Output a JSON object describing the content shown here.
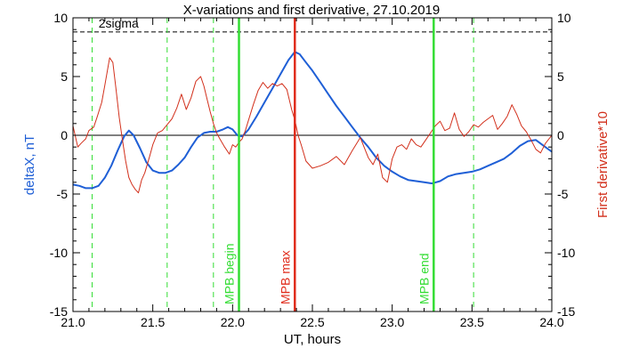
{
  "chart_data": {
    "type": "line",
    "title": "X-variations and first derivative, 27.10.2019",
    "xlabel": "UT, hours",
    "ylabel_left": "deltaX, nT",
    "ylabel_right": "First derivative*10",
    "xlim": [
      21.0,
      24.0
    ],
    "ylim": [
      -15,
      10
    ],
    "x_ticks": [
      "21.0",
      "21.5",
      "22.0",
      "22.5",
      "23.0",
      "23.5",
      "24.0"
    ],
    "y_ticks": [
      "10",
      "5",
      "0",
      "-5",
      "-10",
      "-15"
    ],
    "colors": {
      "deltaX": "#1f5fd6",
      "derivative": "#d2301c",
      "mpb": "#33dd33",
      "mpb_max": "#e02c1c",
      "axes": "#000000"
    },
    "sigma_label": "2sigma",
    "sigma_level": 8.8,
    "dashed_verticals": [
      21.12,
      21.59,
      21.88,
      23.51
    ],
    "mpb_lines": [
      {
        "x": 22.04,
        "label": "MPB begin",
        "color": "#33dd33"
      },
      {
        "x": 22.39,
        "label": "MPB max",
        "color": "#e02c1c"
      },
      {
        "x": 23.26,
        "label": "MPB end",
        "color": "#33dd33"
      }
    ],
    "series": [
      {
        "name": "deltaX",
        "color": "#1f5fd6",
        "x": [
          21.0,
          21.04,
          21.08,
          21.12,
          21.16,
          21.2,
          21.24,
          21.28,
          21.32,
          21.35,
          21.38,
          21.42,
          21.46,
          21.5,
          21.54,
          21.58,
          21.62,
          21.66,
          21.7,
          21.74,
          21.78,
          21.82,
          21.86,
          21.9,
          21.94,
          21.97,
          22.0,
          22.03,
          22.06,
          22.1,
          22.15,
          22.2,
          22.25,
          22.3,
          22.35,
          22.39,
          22.42,
          22.46,
          22.5,
          22.55,
          22.6,
          22.65,
          22.7,
          22.75,
          22.8,
          22.85,
          22.9,
          22.95,
          23.0,
          23.05,
          23.1,
          23.15,
          23.2,
          23.25,
          23.3,
          23.35,
          23.4,
          23.45,
          23.5,
          23.55,
          23.6,
          23.65,
          23.7,
          23.75,
          23.8,
          23.85,
          23.9,
          23.95,
          24.0
        ],
        "values": [
          -4.2,
          -4.3,
          -4.5,
          -4.5,
          -4.3,
          -3.6,
          -2.6,
          -1.3,
          -0.1,
          0.4,
          0.0,
          -1.1,
          -2.3,
          -3.0,
          -3.2,
          -3.2,
          -3.0,
          -2.5,
          -1.9,
          -1.0,
          -0.2,
          0.2,
          0.3,
          0.3,
          0.5,
          0.7,
          0.5,
          0.0,
          -0.1,
          0.5,
          1.6,
          2.8,
          4.0,
          5.2,
          6.4,
          7.1,
          6.9,
          6.2,
          5.5,
          4.5,
          3.5,
          2.5,
          1.6,
          0.7,
          -0.2,
          -1.0,
          -1.9,
          -2.6,
          -3.1,
          -3.5,
          -3.8,
          -3.9,
          -4.0,
          -4.1,
          -3.9,
          -3.5,
          -3.3,
          -3.2,
          -3.1,
          -2.9,
          -2.6,
          -2.3,
          -2.0,
          -1.5,
          -0.9,
          -0.5,
          -0.4,
          -0.9,
          -1.4
        ]
      },
      {
        "name": "First derivative*10",
        "color": "#d2301c",
        "x": [
          21.0,
          21.03,
          21.05,
          21.08,
          21.1,
          21.13,
          21.15,
          21.18,
          21.2,
          21.23,
          21.25,
          21.27,
          21.29,
          21.31,
          21.33,
          21.35,
          21.37,
          21.39,
          21.41,
          21.43,
          21.45,
          21.48,
          21.5,
          21.53,
          21.56,
          21.59,
          21.62,
          21.65,
          21.68,
          21.71,
          21.74,
          21.77,
          21.8,
          21.82,
          21.84,
          21.86,
          21.88,
          21.9,
          21.92,
          21.95,
          21.98,
          22.0,
          22.02,
          22.04,
          22.06,
          22.08,
          22.1,
          22.13,
          22.16,
          22.19,
          22.22,
          22.25,
          22.28,
          22.31,
          22.34,
          22.37,
          22.39,
          22.41,
          22.43,
          22.46,
          22.5,
          22.55,
          22.6,
          22.65,
          22.7,
          22.75,
          22.8,
          22.85,
          22.88,
          22.91,
          22.94,
          22.97,
          23.0,
          23.03,
          23.06,
          23.09,
          23.12,
          23.15,
          23.18,
          23.21,
          23.24,
          23.27,
          23.3,
          23.33,
          23.36,
          23.39,
          23.42,
          23.45,
          23.48,
          23.51,
          23.54,
          23.57,
          23.6,
          23.63,
          23.66,
          23.69,
          23.72,
          23.75,
          23.78,
          23.81,
          23.84,
          23.87,
          23.9,
          23.93,
          23.96,
          24.0
        ],
        "values": [
          0.8,
          -1.0,
          -0.7,
          -0.3,
          0.4,
          0.7,
          1.5,
          2.8,
          4.3,
          6.6,
          6.2,
          3.9,
          1.5,
          -0.4,
          -2.2,
          -3.6,
          -4.2,
          -4.6,
          -4.9,
          -3.8,
          -3.2,
          -1.8,
          -0.8,
          0.2,
          0.4,
          0.9,
          1.4,
          2.3,
          3.5,
          2.2,
          3.2,
          4.6,
          5.0,
          4.2,
          3.1,
          2.0,
          1.0,
          0.2,
          -0.3,
          -1.0,
          -1.6,
          -0.8,
          -1.0,
          -0.6,
          -0.3,
          0.4,
          1.3,
          2.6,
          3.8,
          4.5,
          4.0,
          4.4,
          4.2,
          4.4,
          3.9,
          2.2,
          1.3,
          0.0,
          -0.8,
          -2.2,
          -2.8,
          -2.6,
          -2.3,
          -1.8,
          -2.5,
          -1.3,
          -0.2,
          -1.9,
          -2.5,
          -1.6,
          -3.6,
          -4.0,
          -2.0,
          -1.0,
          -0.8,
          -1.2,
          -0.3,
          -0.8,
          -1.0,
          -0.4,
          0.2,
          0.8,
          1.2,
          0.4,
          0.6,
          1.9,
          0.5,
          -0.1,
          0.3,
          0.9,
          0.7,
          1.1,
          1.4,
          1.7,
          0.5,
          1.0,
          1.6,
          2.6,
          1.8,
          0.8,
          0.3,
          -0.4,
          -1.2,
          -1.5,
          -0.7,
          0.0
        ]
      }
    ]
  }
}
